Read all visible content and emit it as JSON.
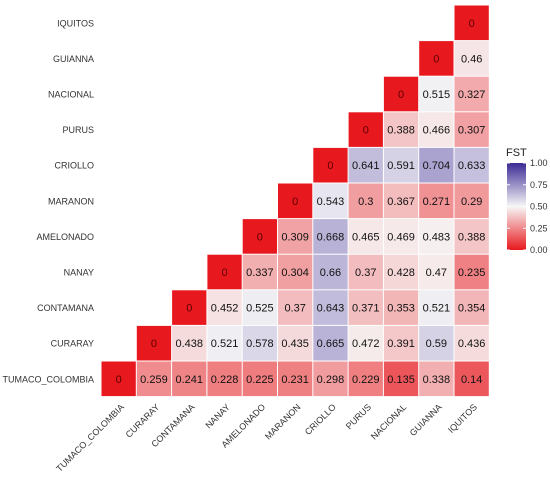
{
  "chart_data": {
    "type": "heatmap",
    "title": "",
    "xlabel": "",
    "ylabel": "",
    "populations": [
      "TUMACO_COLOMBIA",
      "CURARAY",
      "CONTAMANA",
      "NANAY",
      "AMELONADO",
      "MARANON",
      "CRIOLLO",
      "PURUS",
      "NACIONAL",
      "GUIANNA",
      "IQUITOS"
    ],
    "rows": [
      {
        "label": "IQUITOS",
        "values": [
          null,
          null,
          null,
          null,
          null,
          null,
          null,
          null,
          null,
          null,
          0
        ]
      },
      {
        "label": "GUIANNA",
        "values": [
          null,
          null,
          null,
          null,
          null,
          null,
          null,
          null,
          null,
          0,
          0.46
        ]
      },
      {
        "label": "NACIONAL",
        "values": [
          null,
          null,
          null,
          null,
          null,
          null,
          null,
          null,
          0,
          0.515,
          0.327
        ]
      },
      {
        "label": "PURUS",
        "values": [
          null,
          null,
          null,
          null,
          null,
          null,
          null,
          0,
          0.388,
          0.466,
          0.307
        ]
      },
      {
        "label": "CRIOLLO",
        "values": [
          null,
          null,
          null,
          null,
          null,
          null,
          0,
          0.641,
          0.591,
          0.704,
          0.633
        ]
      },
      {
        "label": "MARANON",
        "values": [
          null,
          null,
          null,
          null,
          null,
          0,
          0.543,
          0.3,
          0.367,
          0.271,
          0.29
        ]
      },
      {
        "label": "AMELONADO",
        "values": [
          null,
          null,
          null,
          null,
          0,
          0.309,
          0.668,
          0.465,
          0.469,
          0.483,
          0.388
        ]
      },
      {
        "label": "NANAY",
        "values": [
          null,
          null,
          null,
          0,
          0.337,
          0.304,
          0.66,
          0.37,
          0.428,
          0.47,
          0.235
        ]
      },
      {
        "label": "CONTAMANA",
        "values": [
          null,
          null,
          0,
          0.452,
          0.525,
          0.37,
          0.643,
          0.371,
          0.353,
          0.521,
          0.354
        ]
      },
      {
        "label": "CURARAY",
        "values": [
          null,
          0,
          0.438,
          0.521,
          0.578,
          0.435,
          0.665,
          0.472,
          0.391,
          0.59,
          0.436
        ]
      },
      {
        "label": "TUMACO_COLOMBIA",
        "values": [
          0,
          0.259,
          0.241,
          0.228,
          0.225,
          0.231,
          0.298,
          0.229,
          0.135,
          0.338,
          0.14
        ]
      }
    ],
    "legend": {
      "title": "FST",
      "ticks": [
        "1.00",
        "0.75",
        "0.50",
        "0.25",
        "0.00"
      ],
      "range": [
        0,
        1
      ],
      "colors": {
        "low": "#e8191e",
        "mid": "#f7f7f7",
        "high": "#3b2a95"
      }
    },
    "legend_position": "right",
    "grid": false
  }
}
